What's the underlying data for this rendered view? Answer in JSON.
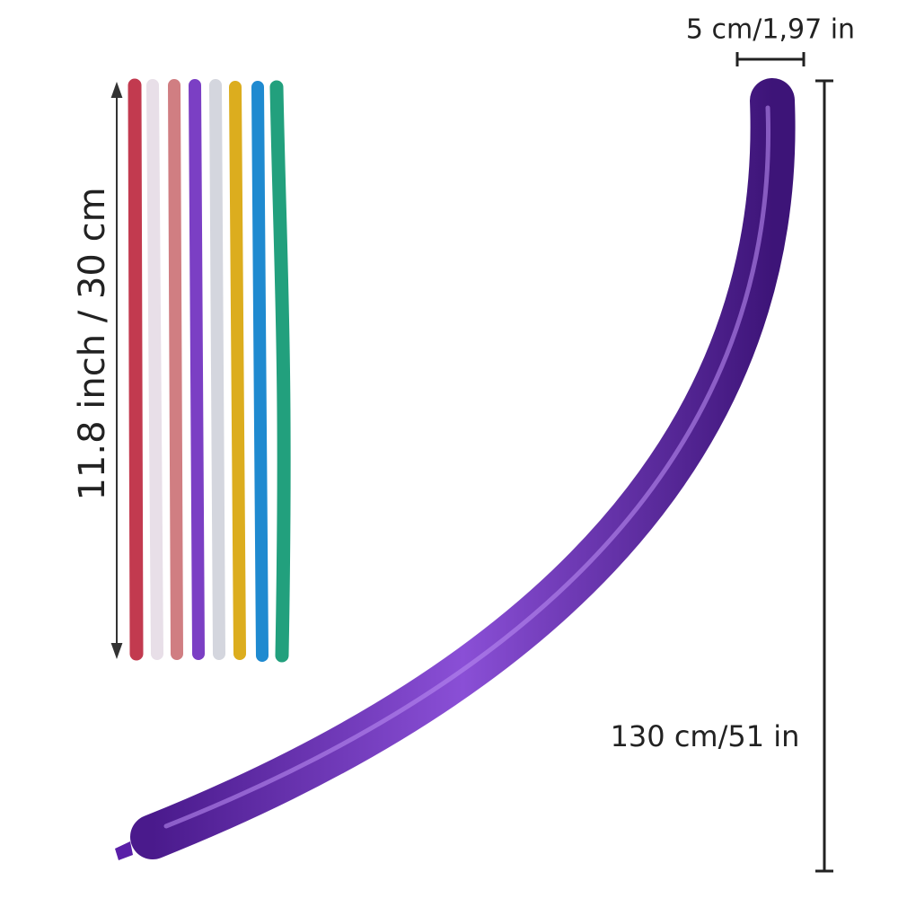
{
  "labels": {
    "width": "5 cm/1,97 in",
    "deflated_length": "11.8 inch / 30 cm",
    "inflated_length": "130 cm/51 in"
  }
}
